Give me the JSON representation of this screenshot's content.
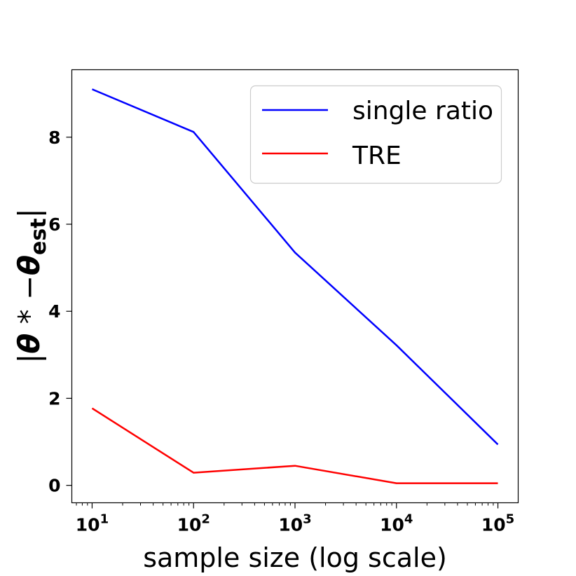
{
  "chart_data": {
    "type": "line",
    "xscale": "log",
    "x": [
      10,
      100,
      1000,
      10000,
      100000
    ],
    "series": [
      {
        "name": "single ratio",
        "color": "#0000ff",
        "values": [
          9.1,
          8.12,
          5.35,
          3.22,
          0.94
        ]
      },
      {
        "name": "TRE",
        "color": "#ff0000",
        "values": [
          1.77,
          0.29,
          0.45,
          0.05,
          0.05
        ]
      }
    ],
    "xlabel": "sample size (log scale)",
    "ylabel": {
      "prefix": "|",
      "theta1": "θ",
      "star": " * −",
      "theta2": "θ",
      "sub": "est",
      "suffix": "|"
    },
    "xticks": [
      {
        "base": "10",
        "exp": "1"
      },
      {
        "base": "10",
        "exp": "2"
      },
      {
        "base": "10",
        "exp": "3"
      },
      {
        "base": "10",
        "exp": "4"
      },
      {
        "base": "10",
        "exp": "5"
      }
    ],
    "yticks": [
      {
        "value": 0,
        "label": "0"
      },
      {
        "value": 2,
        "label": "2"
      },
      {
        "value": 4,
        "label": "4"
      },
      {
        "value": 6,
        "label": "6"
      },
      {
        "value": 8,
        "label": "8"
      }
    ],
    "xlim_log10": [
      0.8,
      5.2
    ],
    "ylim": [
      -0.4,
      9.55
    ],
    "grid": false,
    "legend_position": "top-right"
  }
}
